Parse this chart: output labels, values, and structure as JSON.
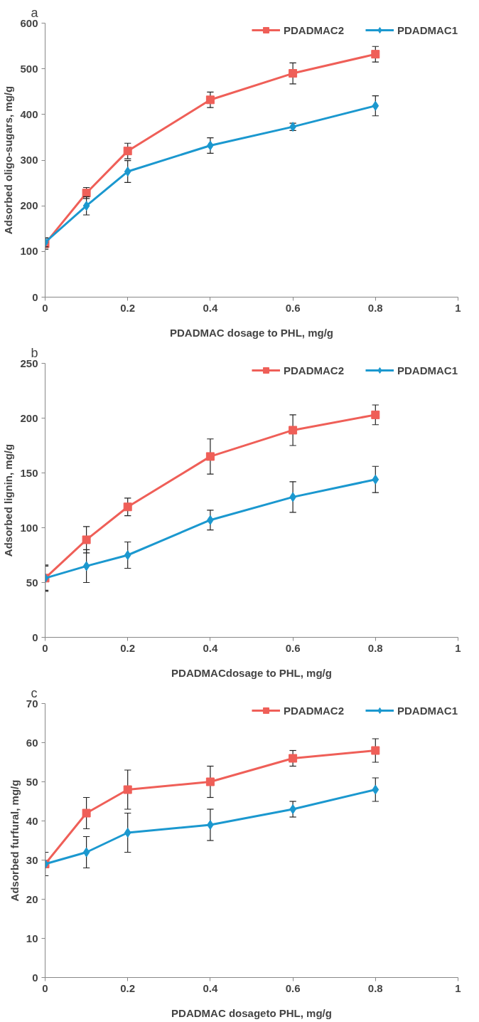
{
  "chart_data": [
    {
      "type": "line",
      "title": "a",
      "xlabel": "PDADMAC dosage to PHL, mg/g",
      "ylabel": "Adsorbed oligo-sugars, mg/g",
      "x": [
        0,
        0.1,
        0.2,
        0.4,
        0.6,
        0.8
      ],
      "xlim": [
        0,
        1
      ],
      "xticks": [
        0,
        0.2,
        0.4,
        0.6,
        0.8,
        1
      ],
      "ylim": [
        0,
        600
      ],
      "yticks": [
        0,
        100,
        200,
        300,
        400,
        500,
        600
      ],
      "grid": false,
      "legend": "top right",
      "line_style": "solid",
      "series": [
        {
          "name": "PDADMAC2",
          "color": "#ef5f58",
          "marker": "square",
          "values": [
            117,
            228,
            320,
            432,
            490,
            532
          ],
          "errors": [
            12,
            12,
            17,
            17,
            23,
            17
          ]
        },
        {
          "name": "PDADMAC1",
          "color": "#1b98cf",
          "marker": "diamond",
          "values": [
            120,
            200,
            275,
            332,
            373,
            419
          ],
          "errors": [
            10,
            20,
            24,
            17,
            8,
            22
          ]
        }
      ]
    },
    {
      "type": "line",
      "title": "b",
      "xlabel": "PDADMACdosage to PHL, mg/g",
      "ylabel": "Adsorbed lignin, mg/g",
      "x": [
        0,
        0.1,
        0.2,
        0.4,
        0.6,
        0.8
      ],
      "xlim": [
        0,
        1
      ],
      "xticks": [
        0,
        0.2,
        0.4,
        0.6,
        0.8,
        1
      ],
      "ylim": [
        0,
        250
      ],
      "yticks": [
        0,
        50,
        100,
        150,
        200,
        250
      ],
      "grid": false,
      "legend": "top right",
      "line_style": "solid",
      "series": [
        {
          "name": "PDADMAC2",
          "color": "#ef5f58",
          "marker": "square",
          "values": [
            54,
            89,
            119,
            165,
            189,
            203
          ],
          "errors": [
            12,
            12,
            8,
            16,
            14,
            9
          ]
        },
        {
          "name": "PDADMAC1",
          "color": "#1b98cf",
          "marker": "diamond",
          "values": [
            54,
            65,
            75,
            107,
            128,
            144
          ],
          "errors": [
            11,
            15,
            12,
            9,
            14,
            12
          ]
        }
      ]
    },
    {
      "type": "line",
      "title": "c",
      "xlabel": "PDADMAC dosageto PHL, mg/g",
      "ylabel": "Adsorbed furfural, mg/g",
      "x": [
        0,
        0.1,
        0.2,
        0.4,
        0.6,
        0.8
      ],
      "xlim": [
        0,
        1
      ],
      "xticks": [
        0,
        0.2,
        0.4,
        0.6,
        0.8,
        1
      ],
      "ylim": [
        0,
        70
      ],
      "yticks": [
        0,
        10,
        20,
        30,
        40,
        50,
        60,
        70
      ],
      "grid": false,
      "legend": "top right",
      "line_style": "solid",
      "series": [
        {
          "name": "PDADMAC2",
          "color": "#ef5f58",
          "marker": "square",
          "values": [
            29,
            42,
            48,
            50,
            56,
            58
          ],
          "errors": [
            3,
            4,
            5,
            4,
            2,
            3
          ]
        },
        {
          "name": "PDADMAC1",
          "color": "#1b98cf",
          "marker": "diamond",
          "values": [
            29,
            32,
            37,
            39,
            43,
            48
          ],
          "errors": [
            3,
            4,
            5,
            4,
            2,
            3
          ]
        }
      ]
    }
  ]
}
